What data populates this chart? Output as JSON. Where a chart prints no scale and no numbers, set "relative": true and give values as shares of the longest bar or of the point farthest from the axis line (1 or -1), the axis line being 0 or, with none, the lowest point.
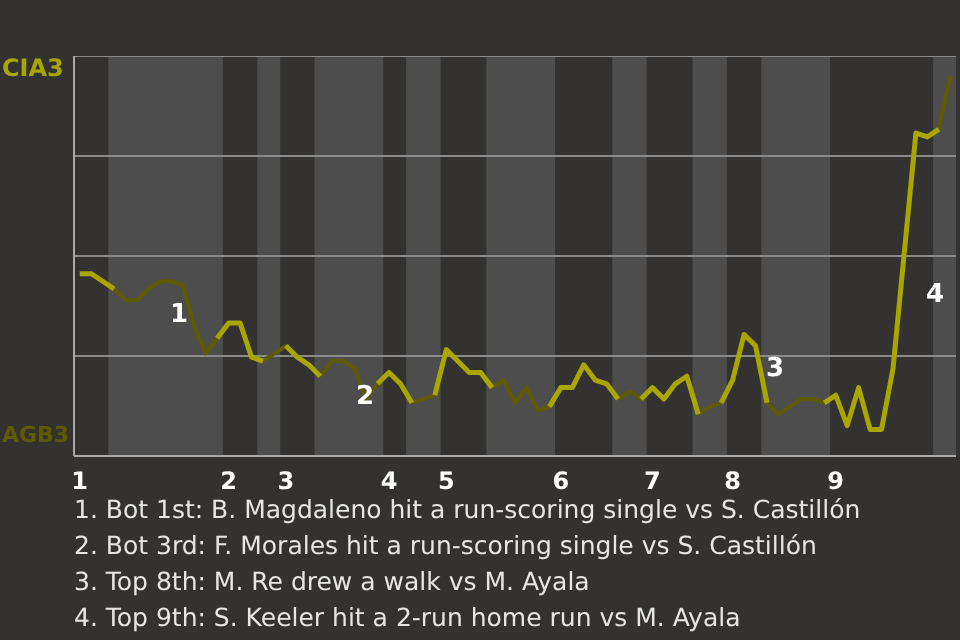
{
  "chart_data": {
    "type": "line",
    "relative": true,
    "categories": [
      "1",
      null,
      null,
      null,
      null,
      null,
      null,
      null,
      null,
      null,
      null,
      null,
      null,
      "2",
      null,
      null,
      null,
      null,
      "3",
      null,
      null,
      null,
      null,
      null,
      null,
      null,
      null,
      "4",
      null,
      null,
      null,
      null,
      "5",
      null,
      null,
      null,
      null,
      null,
      null,
      null,
      null,
      null,
      "6",
      null,
      null,
      null,
      null,
      null,
      null,
      null,
      "7",
      null,
      null,
      null,
      null,
      null,
      null,
      "8",
      null,
      null,
      null,
      null,
      null,
      null,
      null,
      null,
      "9",
      null,
      null,
      null,
      null,
      null,
      null,
      null,
      null,
      null,
      null
    ],
    "series": [
      {
        "color": "#aaa600",
        "values": [
          0.48,
          0.48,
          0.46,
          0.44,
          null,
          null,
          null,
          null,
          null,
          null,
          null,
          null,
          0.31,
          0.35,
          0.35,
          0.26,
          0.25,
          null,
          0.29,
          0.26,
          0.24,
          0.21,
          null,
          null,
          null,
          null,
          0.19,
          0.22,
          0.19,
          0.14,
          null,
          0.16,
          0.28,
          0.25,
          0.22,
          0.22,
          0.18,
          null,
          null,
          null,
          null,
          0.13,
          0.18,
          0.18,
          0.24,
          0.2,
          0.19,
          0.15,
          null,
          0.15,
          0.18,
          0.15,
          0.19,
          0.21,
          0.11,
          null,
          0.14,
          0.2,
          0.32,
          0.29,
          0.14,
          null,
          null,
          null,
          null,
          0.14,
          0.16,
          0.08,
          0.18,
          0.07,
          0.07,
          0.23,
          0.54,
          0.85,
          0.84,
          0.86,
          null
        ]
      },
      {
        "color": "#5e5a00",
        "values": [
          null,
          null,
          null,
          0.44,
          0.41,
          0.41,
          0.44,
          0.46,
          0.46,
          0.45,
          0.34,
          0.27,
          0.31,
          0.35,
          null,
          null,
          0.25,
          0.27,
          0.29,
          0.26,
          null,
          0.21,
          0.25,
          0.25,
          0.23,
          0.15,
          0.19,
          0.22,
          null,
          0.14,
          0.15,
          0.16,
          0.28,
          null,
          null,
          null,
          0.18,
          0.2,
          0.14,
          0.18,
          0.12,
          0.13,
          0.18,
          null,
          null,
          null,
          null,
          0.15,
          0.17,
          0.15,
          0.18,
          null,
          null,
          null,
          0.11,
          0.13,
          0.14,
          0.2,
          null,
          null,
          0.14,
          0.11,
          0.13,
          0.15,
          0.15,
          0.14,
          0.16,
          null,
          null,
          null,
          null,
          null,
          null,
          null,
          null,
          0.86,
          1
        ]
      }
    ],
    "annotations": [
      "1",
      "2",
      "3",
      "4",
      "CIA3",
      "AGB3",
      "1. Bot 1st: B. Magdaleno hit a run-scoring single vs S. Castillón",
      "2. Bot 3rd: F. Morales hit a run-scoring single vs S. Castillón",
      "3. Top 8th: M. Re drew a walk vs M. Ayala",
      "4. Top 9th: S. Keeler hit a 2-run home run vs M. Ayala"
    ]
  }
}
